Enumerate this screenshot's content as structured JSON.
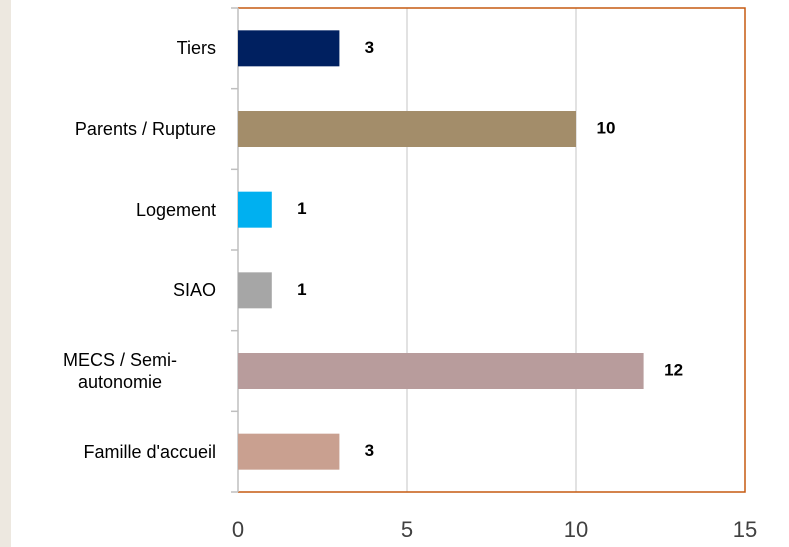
{
  "chart_data": {
    "type": "bar",
    "orientation": "horizontal",
    "categories": [
      "Tiers",
      "Parents / Rupture",
      "Logement",
      "SIAO",
      "MECS / Semi-autonomie",
      "Famille d'accueil"
    ],
    "values": [
      3,
      10,
      1,
      1,
      12,
      3
    ],
    "colors": [
      "#002060",
      "#a38d6a",
      "#00b0f0",
      "#a6a6a6",
      "#b89c9c",
      "#c9a090"
    ],
    "xlim": [
      0,
      15
    ],
    "xticks": [
      0,
      5,
      10,
      15
    ],
    "grid": true
  }
}
